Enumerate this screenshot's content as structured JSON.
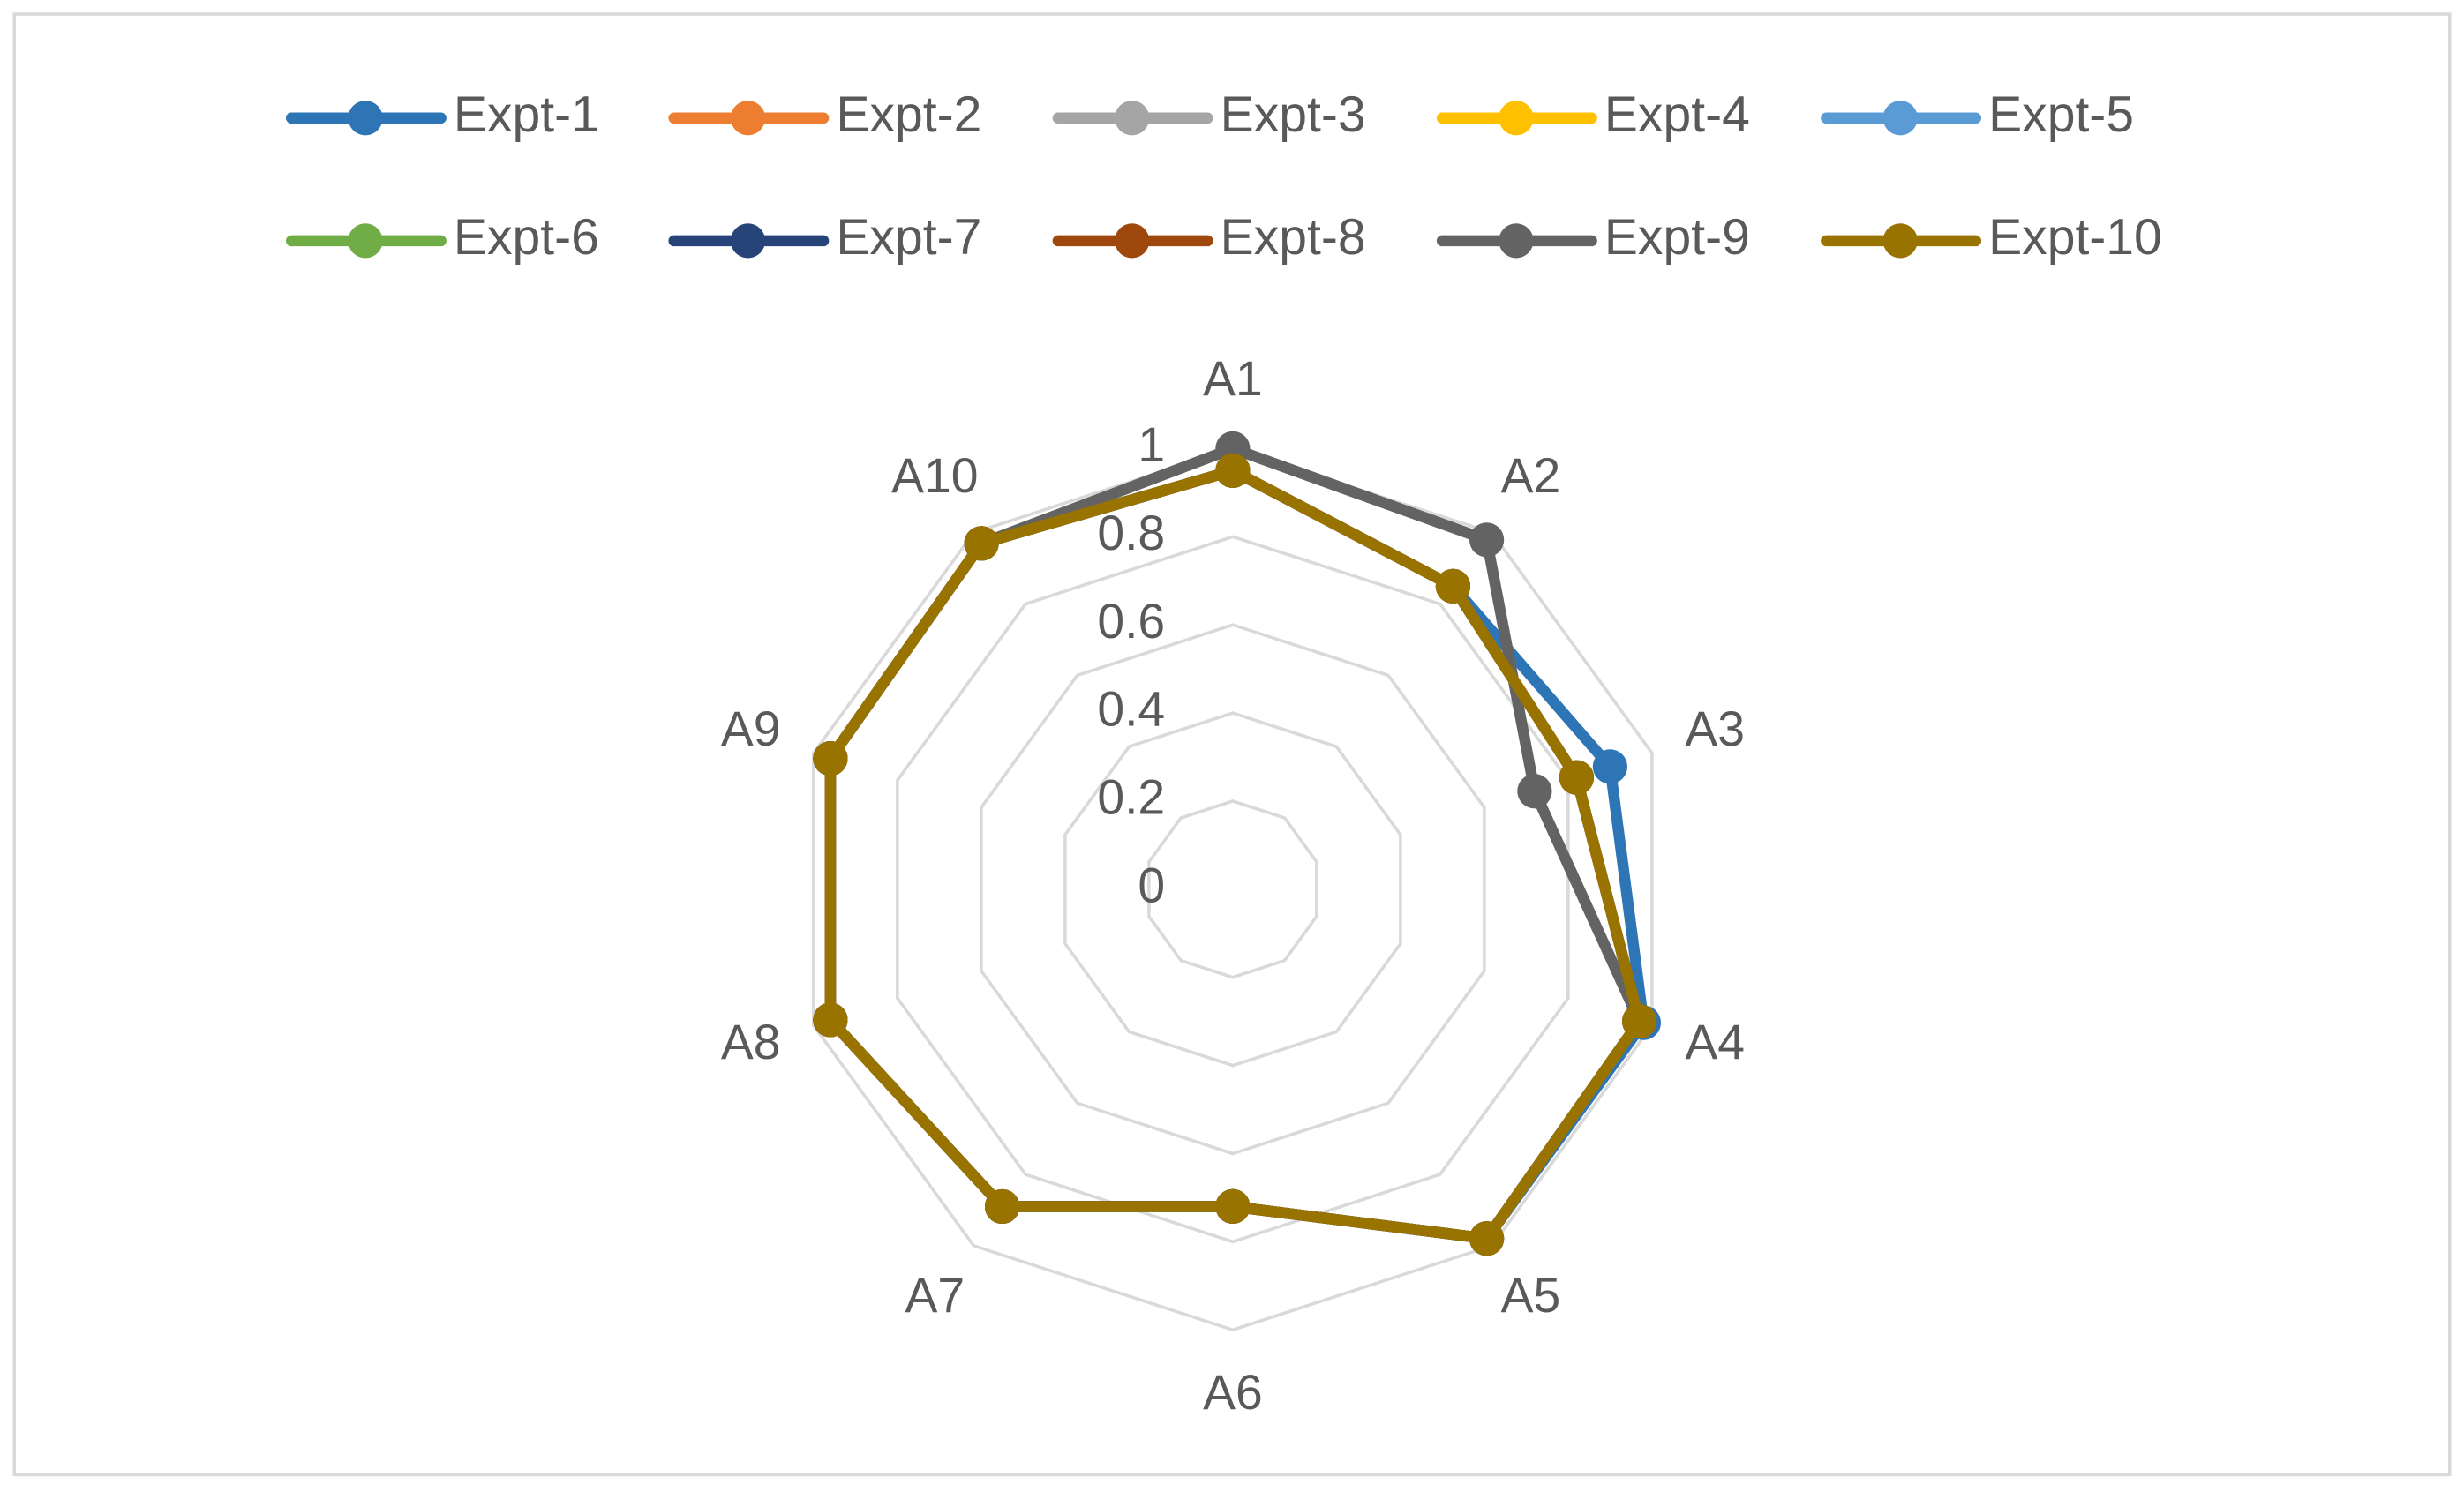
{
  "chart_data": {
    "type": "radar",
    "categories": [
      "A1",
      "A2",
      "A3",
      "A4",
      "A5",
      "A6",
      "A7",
      "A8",
      "A9",
      "A10"
    ],
    "ylim": [
      0,
      1
    ],
    "yticks": [
      0,
      0.2,
      0.4,
      0.6,
      0.8,
      1
    ],
    "grid": true,
    "legend": "top",
    "series": [
      {
        "name": "Expt-1",
        "color": "#2e75b6",
        "values": [
          0.95,
          0.85,
          0.9,
          0.98,
          0.98,
          0.72,
          0.89,
          0.96,
          0.96,
          0.97
        ]
      },
      {
        "name": "Expt-2",
        "color": "#ed7d31",
        "values": [
          0.95,
          0.85,
          0.82,
          0.97,
          0.98,
          0.72,
          0.89,
          0.96,
          0.96,
          0.97
        ]
      },
      {
        "name": "Expt-3",
        "color": "#a5a5a5",
        "values": [
          0.95,
          0.85,
          0.82,
          0.97,
          0.98,
          0.72,
          0.89,
          0.96,
          0.96,
          0.97
        ]
      },
      {
        "name": "Expt-4",
        "color": "#ffc000",
        "values": [
          0.95,
          0.85,
          0.82,
          0.97,
          0.98,
          0.72,
          0.89,
          0.96,
          0.96,
          0.97
        ]
      },
      {
        "name": "Expt-5",
        "color": "#5b9bd5",
        "values": [
          0.95,
          0.85,
          0.82,
          0.97,
          0.98,
          0.72,
          0.89,
          0.96,
          0.96,
          0.97
        ]
      },
      {
        "name": "Expt-6",
        "color": "#70ad47",
        "values": [
          0.95,
          0.85,
          0.82,
          0.97,
          0.98,
          0.72,
          0.89,
          0.96,
          0.96,
          0.97
        ]
      },
      {
        "name": "Expt-7",
        "color": "#264478",
        "values": [
          0.95,
          0.85,
          0.82,
          0.97,
          0.98,
          0.72,
          0.89,
          0.96,
          0.96,
          0.97
        ]
      },
      {
        "name": "Expt-8",
        "color": "#9e480e",
        "values": [
          0.95,
          0.85,
          0.82,
          0.97,
          0.98,
          0.72,
          0.89,
          0.96,
          0.96,
          0.97
        ]
      },
      {
        "name": "Expt-9",
        "color": "#636363",
        "values": [
          1,
          0.98,
          0.72,
          0.97,
          0.98,
          0.72,
          0.89,
          0.96,
          0.96,
          0.97
        ]
      },
      {
        "name": "Expt-10",
        "color": "#997300",
        "values": [
          0.95,
          0.85,
          0.82,
          0.97,
          0.98,
          0.72,
          0.89,
          0.96,
          0.96,
          0.97
        ]
      }
    ]
  }
}
